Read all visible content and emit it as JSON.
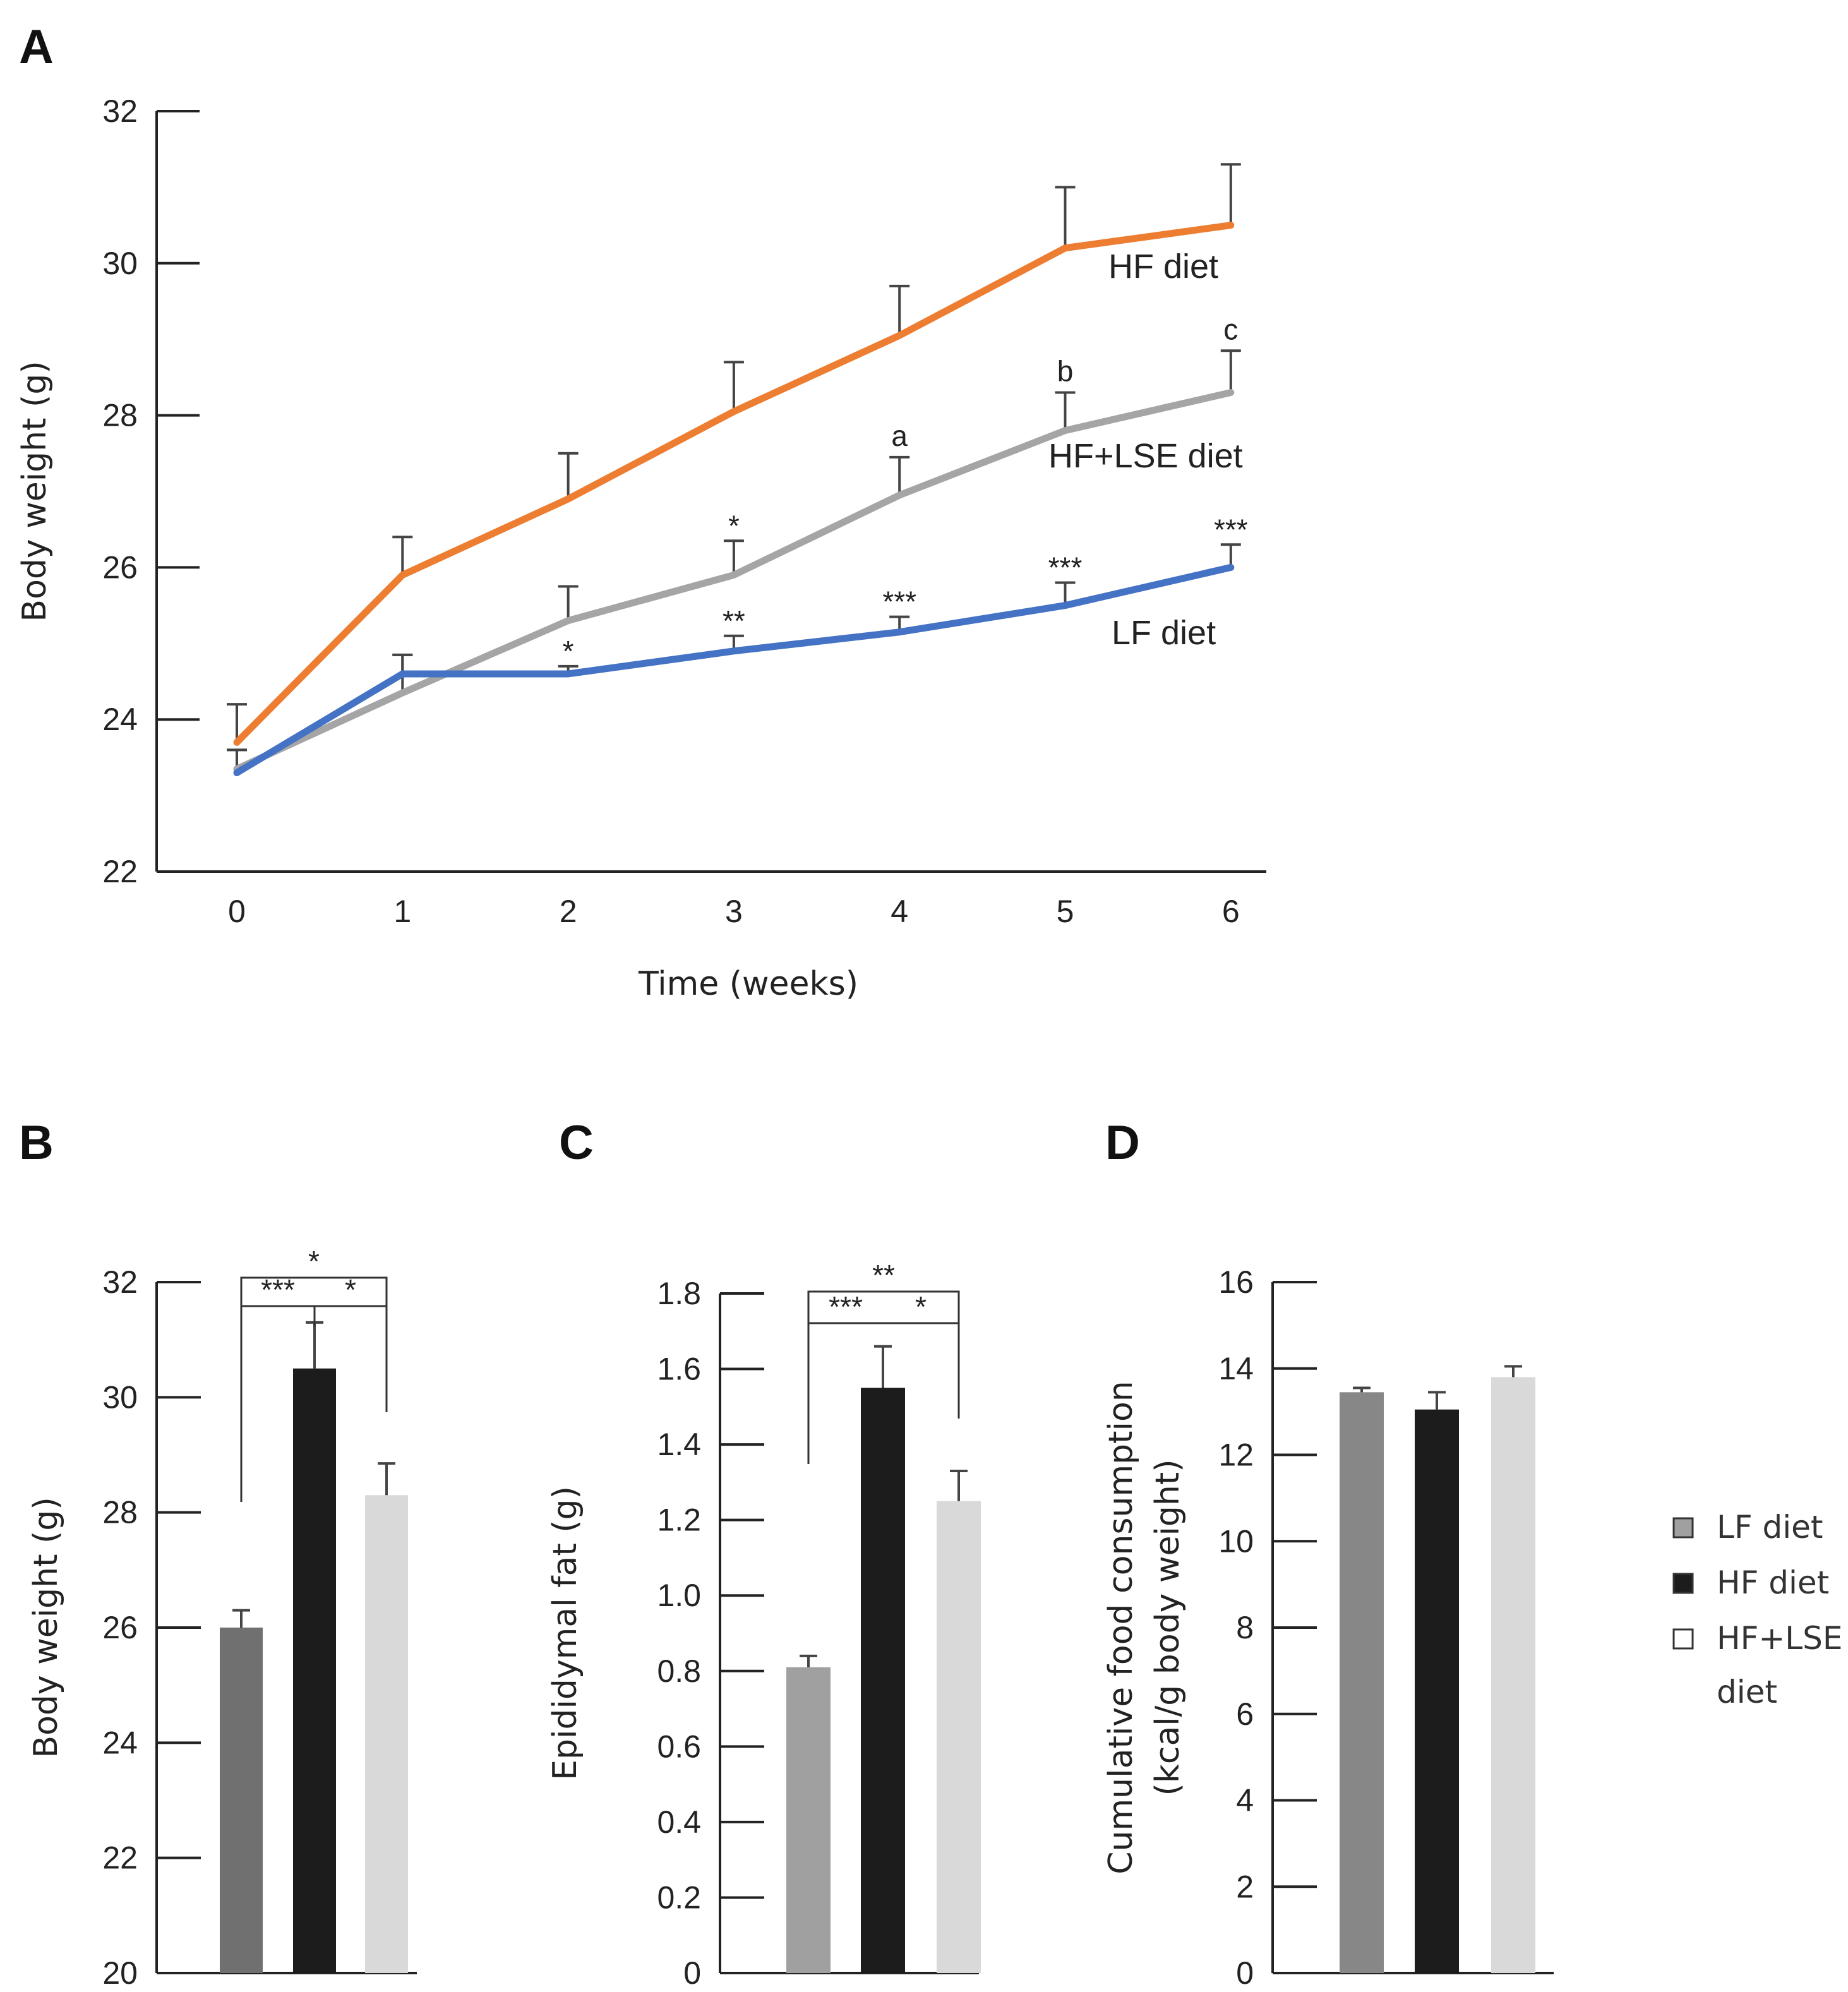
{
  "colors": {
    "hf_line": "#ED7D31",
    "hflse_line": "#A5A5A5",
    "lf_line": "#4472C4",
    "lf_bar": "#707070",
    "hf_bar": "#1C1C1C",
    "hflse_bar": "#D9D9D9",
    "lf_bar_c": "#A0A0A0",
    "lf_bar_d": "#878787"
  },
  "chart_data": [
    {
      "panel": "A",
      "type": "line",
      "xlabel": "Time (weeks)",
      "ylabel": "Body weight (g)",
      "ylim": [
        22,
        32
      ],
      "yticks": [
        "22",
        "24",
        "26",
        "28",
        "30",
        "32"
      ],
      "xticks": [
        "0",
        "1",
        "2",
        "3",
        "4",
        "5",
        "6"
      ],
      "x": [
        0,
        1,
        2,
        3,
        4,
        5,
        6
      ],
      "series": [
        {
          "key": "hf",
          "name": "HF diet",
          "values": [
            23.7,
            25.9,
            26.9,
            28.05,
            29.05,
            30.2,
            30.5
          ],
          "err": [
            0.5,
            0.5,
            0.6,
            0.65,
            0.65,
            0.8,
            0.8
          ],
          "annotations": [
            "",
            "",
            "",
            "",
            "",
            "",
            ""
          ]
        },
        {
          "key": "hflse",
          "name": "HF+LSE diet",
          "values": [
            23.35,
            24.35,
            25.3,
            25.9,
            26.95,
            27.8,
            28.3
          ],
          "err": [
            0.25,
            0.5,
            0.45,
            0.45,
            0.5,
            0.5,
            0.55
          ],
          "annotations": [
            "",
            "",
            "",
            "*",
            "a",
            "b",
            "c"
          ]
        },
        {
          "key": "lf",
          "name": "LF diet",
          "values": [
            23.3,
            24.6,
            24.6,
            24.9,
            25.15,
            25.5,
            26.0
          ],
          "err": [
            0.3,
            0.25,
            0.1,
            0.2,
            0.2,
            0.3,
            0.3
          ],
          "annotations": [
            "",
            "",
            "*",
            "**",
            "***",
            "***",
            "***"
          ]
        }
      ]
    },
    {
      "panel": "B",
      "type": "bar",
      "ylabel": "Body weight (g)",
      "ylim": [
        20,
        32
      ],
      "yticks": [
        "20",
        "22",
        "24",
        "26",
        "28",
        "30",
        "32"
      ],
      "categories": [
        "LF diet",
        "HF diet",
        "HF+LSE diet"
      ],
      "values": [
        26.0,
        30.5,
        28.3
      ],
      "err": [
        0.3,
        0.8,
        0.55
      ],
      "comparisons": [
        {
          "pair": [
            "LF diet",
            "HF diet"
          ],
          "label": "***"
        },
        {
          "pair": [
            "HF diet",
            "HF+LSE diet"
          ],
          "label": "*"
        },
        {
          "pair": [
            "LF diet",
            "HF+LSE diet"
          ],
          "label": "*"
        }
      ]
    },
    {
      "panel": "C",
      "type": "bar",
      "ylabel": "Epididymal fat (g)",
      "ylim": [
        0,
        1.8
      ],
      "yticks": [
        "0",
        "0.2",
        "0.4",
        "0.6",
        "0.8",
        "1.0",
        "1.2",
        "1.4",
        "1.6",
        "1.8"
      ],
      "categories": [
        "LF diet",
        "HF diet",
        "HF+LSE diet"
      ],
      "values": [
        0.81,
        1.55,
        1.25
      ],
      "err": [
        0.03,
        0.11,
        0.08
      ],
      "comparisons": [
        {
          "pair": [
            "LF diet",
            "HF diet"
          ],
          "label": "***"
        },
        {
          "pair": [
            "HF diet",
            "HF+LSE diet"
          ],
          "label": "*"
        },
        {
          "pair": [
            "LF diet",
            "HF+LSE diet"
          ],
          "label": "**"
        }
      ]
    },
    {
      "panel": "D",
      "type": "bar",
      "ylabel_line1": "Cumulative food consumption",
      "ylabel_line2": "(kcal/g body weight)",
      "ylim": [
        0,
        16
      ],
      "yticks": [
        "0",
        "2",
        "4",
        "6",
        "8",
        "10",
        "12",
        "14",
        "16"
      ],
      "categories": [
        "LF diet",
        "HF diet",
        "HF+LSE diet"
      ],
      "values": [
        13.45,
        13.05,
        13.8
      ],
      "err": [
        0.1,
        0.4,
        0.25
      ]
    }
  ],
  "legend": {
    "items": [
      {
        "key": "lf",
        "label": "LF diet"
      },
      {
        "key": "hf",
        "label": "HF diet"
      },
      {
        "key": "hflse",
        "label_line1": "HF+LSE",
        "label_line2": "diet"
      }
    ]
  }
}
